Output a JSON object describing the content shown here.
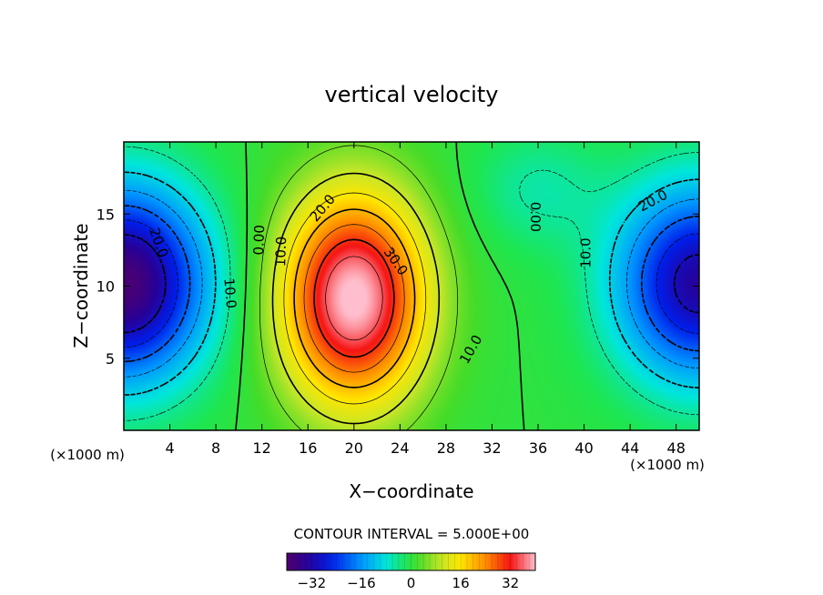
{
  "chart_data": {
    "type": "heatmap",
    "title": "vertical velocity",
    "xlabel": "X−coordinate",
    "ylabel": "Z−coordinate",
    "x_units_left": "(×1000 m)",
    "x_units_right": "(×1000 m)",
    "xlim": [
      0,
      50
    ],
    "ylim": [
      0,
      20
    ],
    "x_ticks": [
      4,
      8,
      12,
      16,
      20,
      24,
      28,
      32,
      36,
      40,
      44,
      48
    ],
    "y_ticks": [
      5,
      10,
      15
    ],
    "contour_interval_text": "CONTOUR INTERVAL = 5.000E+00",
    "contour_levels": [
      -30,
      -25,
      -20,
      -15,
      -10,
      -5,
      0,
      5,
      10,
      15,
      20,
      25,
      30,
      35
    ],
    "contour_labels": [
      {
        "text": "20.0",
        "x": 3.0,
        "y": 13.0,
        "rot": 70
      },
      {
        "text": "10.0",
        "x": 9.2,
        "y": 9.5,
        "rot": 85
      },
      {
        "text": "0.00",
        "x": 11.8,
        "y": 13.2,
        "rot": -88
      },
      {
        "text": "10.0",
        "x": 13.7,
        "y": 12.4,
        "rot": -88
      },
      {
        "text": "20.0",
        "x": 17.3,
        "y": 15.4,
        "rot": -50
      },
      {
        "text": "30.0",
        "x": 23.6,
        "y": 11.7,
        "rot": 55
      },
      {
        "text": "10.0",
        "x": 30.2,
        "y": 5.6,
        "rot": -60
      },
      {
        "text": "0.00",
        "x": 35.7,
        "y": 14.8,
        "rot": 90
      },
      {
        "text": "10.0",
        "x": 40.2,
        "y": 12.3,
        "rot": -90
      },
      {
        "text": "20.0",
        "x": 46.0,
        "y": 15.9,
        "rot": -28
      }
    ],
    "colorbar": {
      "range": [
        -40,
        40
      ],
      "ticks": [
        -32,
        -16,
        0,
        16,
        32
      ],
      "tick_labels": [
        "−32",
        "−16",
        "0",
        "16",
        "32"
      ]
    },
    "features": [
      {
        "name": "updraft",
        "x": 20,
        "z": 9,
        "peak": 40
      },
      {
        "name": "downdraft-left",
        "x": 0,
        "z": 10,
        "peak": -38
      },
      {
        "name": "downdraft-right",
        "x": 50,
        "z": 10,
        "peak": -32
      }
    ]
  }
}
